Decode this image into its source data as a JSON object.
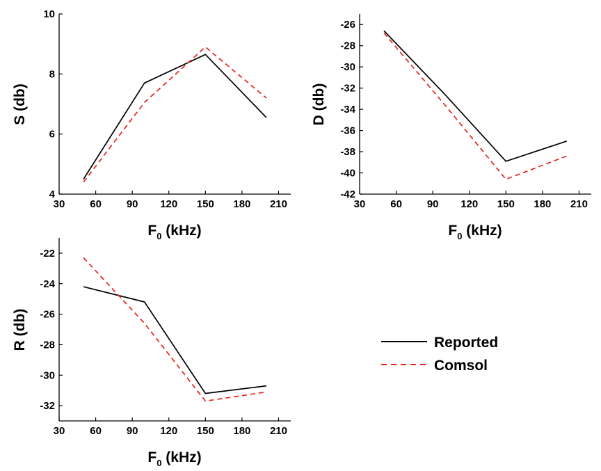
{
  "chart_data": [
    {
      "id": "S",
      "type": "line",
      "ylabel": "S (db)",
      "xlabel": "F",
      "xlabel_sub": "0",
      "xlabel_unit": " (kHz)",
      "xlim": [
        30,
        220
      ],
      "ylim": [
        4,
        10
      ],
      "xticks": [
        30,
        60,
        90,
        120,
        150,
        180,
        210
      ],
      "yticks": [
        4,
        6,
        8,
        10
      ],
      "x": [
        50,
        100,
        150,
        200
      ],
      "series": [
        {
          "name": "Reported",
          "values": [
            4.5,
            7.7,
            8.65,
            6.55
          ],
          "color": "#000000",
          "dash": "solid"
        },
        {
          "name": "Comsol",
          "values": [
            4.4,
            7.05,
            8.9,
            7.2
          ],
          "color": "#e8211a",
          "dash": "dashed"
        }
      ]
    },
    {
      "id": "D",
      "type": "line",
      "ylabel": "D (db)",
      "xlabel": "F",
      "xlabel_sub": "0",
      "xlabel_unit": " (kHz)",
      "xlim": [
        30,
        220
      ],
      "ylim": [
        -42,
        -25
      ],
      "xticks": [
        30,
        60,
        90,
        120,
        150,
        180,
        210
      ],
      "yticks": [
        -42,
        -40,
        -38,
        -36,
        -34,
        -32,
        -30,
        -28,
        -26
      ],
      "x": [
        50,
        100,
        150,
        200
      ],
      "series": [
        {
          "name": "Reported",
          "values": [
            -26.6,
            -32.6,
            -38.9,
            -37.0
          ],
          "color": "#000000",
          "dash": "solid"
        },
        {
          "name": "Comsol",
          "values": [
            -26.8,
            -33.6,
            -40.6,
            -38.4
          ],
          "color": "#e8211a",
          "dash": "dashed"
        }
      ]
    },
    {
      "id": "R",
      "type": "line",
      "ylabel": "R (db)",
      "xlabel": "F",
      "xlabel_sub": "0",
      "xlabel_unit": " (kHz)",
      "xlim": [
        30,
        220
      ],
      "ylim": [
        -33,
        -21
      ],
      "xticks": [
        30,
        60,
        90,
        120,
        150,
        180,
        210
      ],
      "yticks": [
        -32,
        -30,
        -28,
        -26,
        -24,
        -22
      ],
      "x": [
        50,
        100,
        150,
        200
      ],
      "series": [
        {
          "name": "Reported",
          "values": [
            -24.2,
            -25.2,
            -31.2,
            -30.7
          ],
          "color": "#000000",
          "dash": "solid"
        },
        {
          "name": "Comsol",
          "values": [
            -22.3,
            -26.6,
            -31.7,
            -31.1
          ],
          "color": "#e8211a",
          "dash": "dashed"
        }
      ]
    }
  ],
  "legend": {
    "placement": "right",
    "items": [
      {
        "label": "Reported",
        "color": "#000000",
        "dash": "solid"
      },
      {
        "label": "Comsol",
        "color": "#e8211a",
        "dash": "dashed"
      }
    ]
  }
}
